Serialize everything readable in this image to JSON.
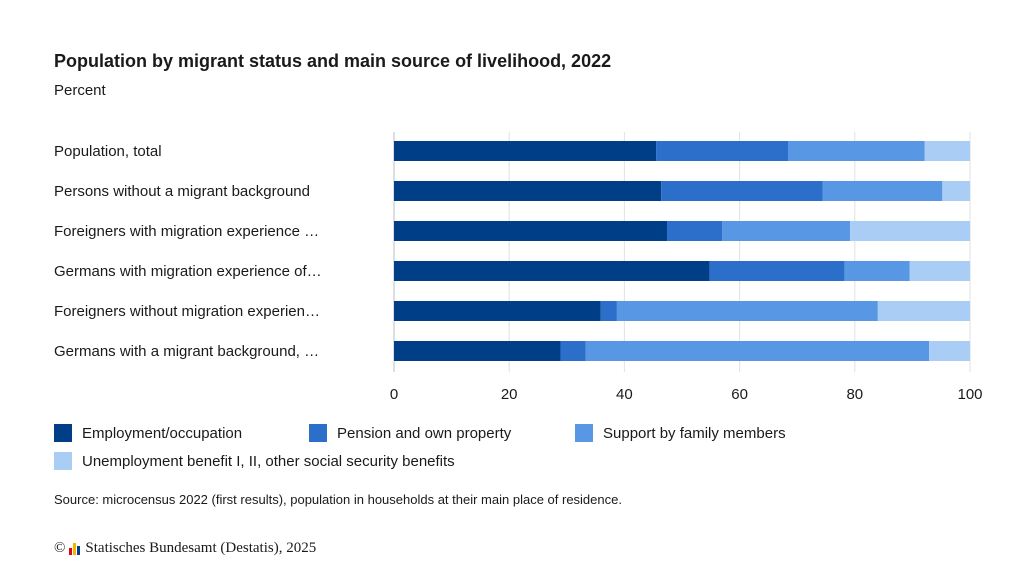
{
  "chart_data": {
    "type": "bar",
    "orientation": "horizontal",
    "stacked": true,
    "title": "Population by migrant status and main source of livelihood, 2022",
    "subtitle": "Percent",
    "categories": [
      "Population, total",
      "Persons without a migrant background",
      "Foreigners with migration experience …",
      "Germans with migration experience of…",
      "Foreigners without migration experien…",
      "Germans with a migrant background, …"
    ],
    "series": [
      {
        "name": "Employment/occupation",
        "color": "#003f87",
        "values": [
          45.5,
          46.4,
          47.4,
          54.8,
          35.9,
          28.9
        ]
      },
      {
        "name": "Pension and own property",
        "color": "#2b6fcb",
        "values": [
          22.9,
          28.0,
          9.6,
          23.4,
          2.8,
          4.4
        ]
      },
      {
        "name": "Support by family members",
        "color": "#5797e3",
        "values": [
          23.7,
          20.8,
          22.2,
          11.3,
          45.3,
          59.6
        ]
      },
      {
        "name": "Unemployment benefit I, II, other social security benefits",
        "color": "#a9cdf5",
        "values": [
          7.9,
          4.8,
          20.8,
          10.5,
          16.0,
          7.1
        ]
      }
    ],
    "xlim": [
      0,
      100
    ],
    "xticks": [
      0,
      20,
      40,
      60,
      80,
      100
    ],
    "grid": true,
    "legend_position": "bottom"
  },
  "source": "Source: microcensus 2022 (first results), population in households at their main place of residence.",
  "copyright": {
    "symbol": "©",
    "text": "Statisches Bundesamt (Destatis), 2025",
    "logo_colors": [
      "#e3001b",
      "#f9b200",
      "#003f87"
    ]
  }
}
